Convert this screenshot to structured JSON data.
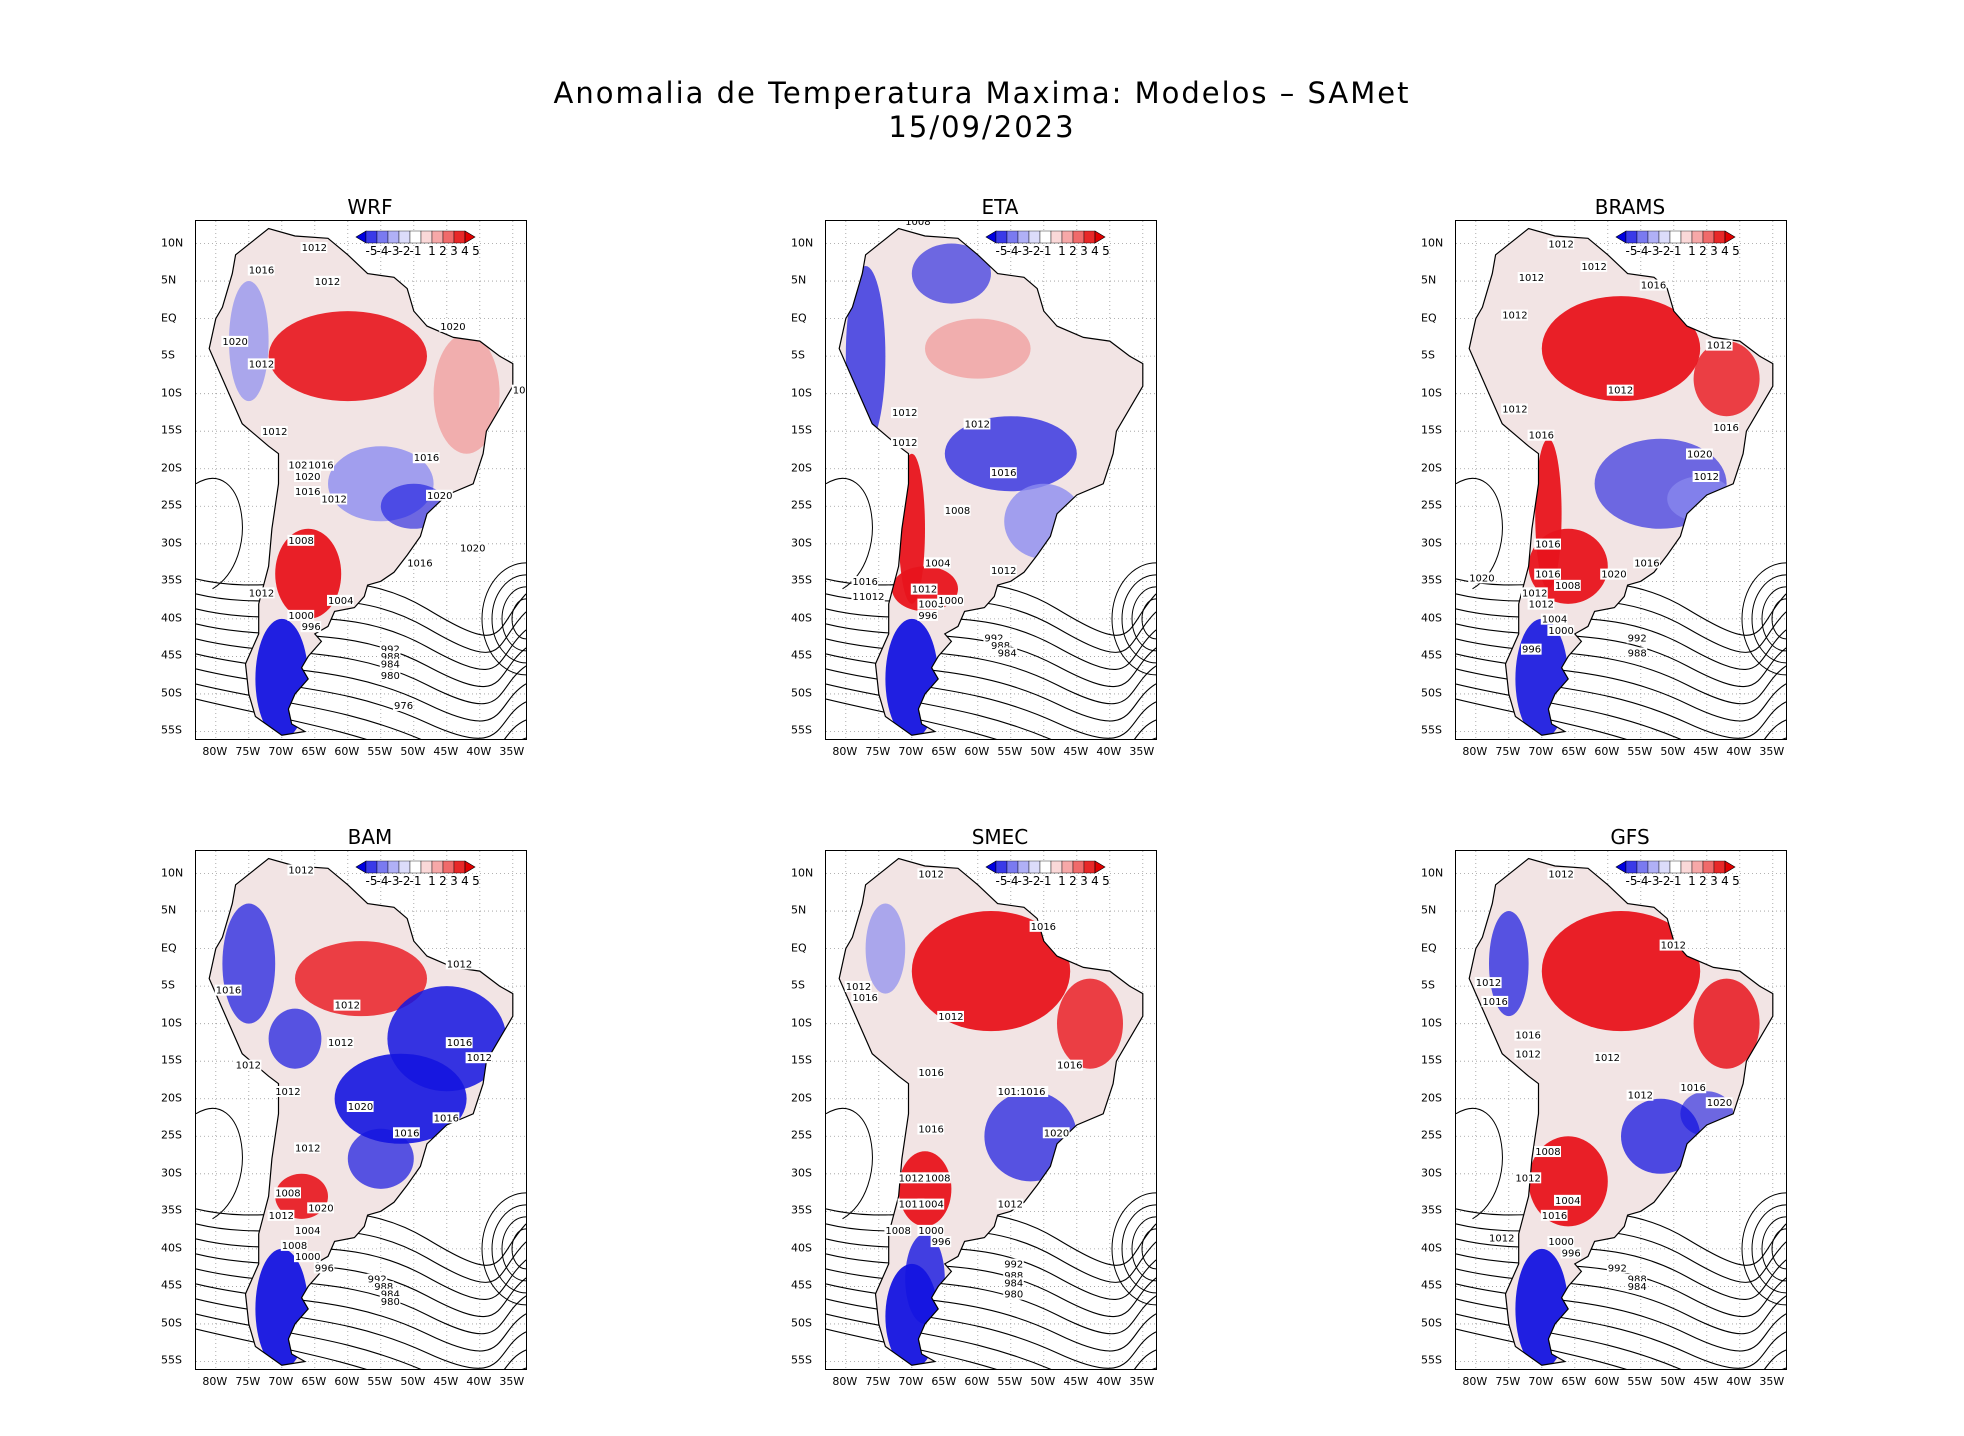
{
  "title_line1": "Anomalia de Temperatura Maxima: Modelos – SAMet",
  "title_line2": "15/09/2023",
  "lat_labels": [
    "10N",
    "5N",
    "EQ",
    "5S",
    "10S",
    "15S",
    "20S",
    "25S",
    "30S",
    "35S",
    "40S",
    "45S",
    "50S",
    "55S"
  ],
  "lon_labels": [
    "80W",
    "75W",
    "70W",
    "65W",
    "60W",
    "55W",
    "50W",
    "45W",
    "40W",
    "35W"
  ],
  "colorbar": {
    "labels": [
      "-5",
      "-4",
      "-3",
      "-2",
      "-1",
      "1",
      "2",
      "3",
      "4",
      "5"
    ],
    "colors": [
      "#0000e0",
      "#3a3ae8",
      "#7a7af0",
      "#b0b0f6",
      "#dcdcfa",
      "#ffffff",
      "#fad8d8",
      "#f6a8a8",
      "#f06a6a",
      "#e82828",
      "#e00000"
    ]
  },
  "colors": {
    "red": "#e8141c",
    "blue": "#1414e0",
    "land": "#f2e4e4",
    "contour": "#000000"
  },
  "panels": [
    {
      "name": "WRF",
      "isobars": [
        "1012",
        "1016",
        "1012",
        "1020",
        "1012",
        "1020",
        "1012",
        "1020",
        "1016",
        "1020",
        "1016",
        "1012",
        "1020",
        "1008",
        "1016",
        "1020",
        "1016",
        "1012",
        "1004",
        "1000",
        "996",
        "992",
        "988",
        "984",
        "980",
        "976",
        "10"
      ]
    },
    {
      "name": "ETA",
      "isobars": [
        "1008",
        "1008",
        "1012",
        "1012",
        "1012",
        "1016",
        "1012",
        "1008",
        "1004",
        "1016",
        "1012",
        "1012",
        "1008",
        "1000",
        "996",
        "992",
        "988",
        "984"
      ]
    },
    {
      "name": "BRAMS",
      "isobars": [
        "1012",
        "1012",
        "1012",
        "1016",
        "1012",
        "1012",
        "1012",
        "1020",
        "1012",
        "1016",
        "1016",
        "1020",
        "1012",
        "1016",
        "1016",
        "1008",
        "1012",
        "1020",
        "1016",
        "1012",
        "1004",
        "1000",
        "996",
        "992",
        "988"
      ]
    },
    {
      "name": "BAM",
      "isobars": [
        "1012",
        "1012",
        "1016",
        "1012",
        "1012",
        "1016",
        "1012",
        "1012",
        "1012",
        "1020",
        "1016",
        "1016",
        "1012",
        "1008",
        "1020",
        "1012",
        "1004",
        "1008",
        "1000",
        "996",
        "992",
        "988",
        "984",
        "980"
      ]
    },
    {
      "name": "SMEC",
      "isobars": [
        "1012",
        "1012",
        "1016",
        "1016",
        "1012",
        "1016",
        "101:1016",
        "1016",
        "1020",
        "1016",
        "1012",
        "1008",
        "1016",
        "1004",
        "1012",
        "1008",
        "1000",
        "996",
        "992",
        "988",
        "984",
        "980"
      ]
    },
    {
      "name": "GFS",
      "isobars": [
        "1012",
        "1012",
        "1016",
        "1012",
        "1016",
        "1012",
        "1012",
        "1016",
        "1012",
        "1020",
        "1008",
        "1012",
        "1004",
        "1016",
        "1012",
        "1000",
        "996",
        "992",
        "988",
        "984"
      ]
    }
  ]
}
